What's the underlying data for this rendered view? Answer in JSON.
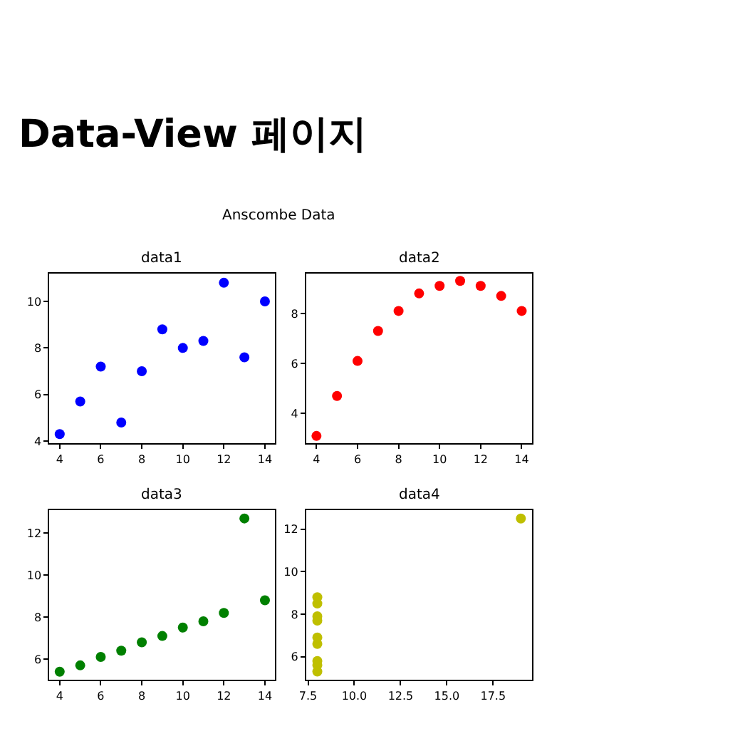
{
  "chart_data": [
    {
      "type": "other",
      "title": "Data-View 페이지",
      "subtitle": "Anscombe Data"
    },
    {
      "type": "scatter",
      "title": "data1",
      "x": [
        10,
        8,
        13,
        9,
        11,
        14,
        6,
        4,
        12,
        7,
        5
      ],
      "values": [
        8.0,
        7.0,
        7.6,
        8.8,
        8.3,
        10.0,
        7.2,
        4.3,
        10.8,
        4.8,
        5.7
      ],
      "color": "#0000ff",
      "marker": "circle",
      "xlim": [
        3.5,
        14.5
      ],
      "xticks": [
        4,
        6,
        8,
        10,
        12,
        14
      ],
      "ylim": [
        3.9,
        11.2
      ],
      "yticks": [
        4,
        6,
        8,
        10
      ]
    },
    {
      "type": "scatter",
      "title": "data2",
      "x": [
        10,
        8,
        13,
        9,
        11,
        14,
        6,
        4,
        12,
        7,
        5
      ],
      "values": [
        9.1,
        8.1,
        8.7,
        8.8,
        9.3,
        8.1,
        6.1,
        3.1,
        9.1,
        7.3,
        4.7
      ],
      "color": "#ff0000",
      "marker": "circle",
      "xlim": [
        3.5,
        14.5
      ],
      "xticks": [
        4,
        6,
        8,
        10,
        12,
        14
      ],
      "ylim": [
        2.8,
        9.6
      ],
      "yticks": [
        4,
        6,
        8
      ]
    },
    {
      "type": "scatter",
      "title": "data3",
      "x": [
        10,
        8,
        13,
        9,
        11,
        14,
        6,
        4,
        12,
        7,
        5
      ],
      "values": [
        7.5,
        6.8,
        12.7,
        7.1,
        7.8,
        8.8,
        6.1,
        5.4,
        8.2,
        6.4,
        5.7
      ],
      "color": "#008000",
      "marker": "circle",
      "xlim": [
        3.5,
        14.5
      ],
      "xticks": [
        4,
        6,
        8,
        10,
        12,
        14
      ],
      "ylim": [
        5.0,
        13.1
      ],
      "yticks": [
        6,
        8,
        10,
        12
      ]
    },
    {
      "type": "scatter",
      "title": "data4",
      "x": [
        8,
        8,
        8,
        8,
        8,
        8,
        19,
        8,
        8,
        8
      ],
      "values": [
        6.6,
        5.8,
        7.7,
        8.8,
        8.5,
        5.3,
        12.5,
        5.6,
        7.9,
        6.9
      ],
      "color": "#bfbf00",
      "marker": "circle",
      "xlim": [
        7.4,
        19.6
      ],
      "xticks": [
        {
          "value": 7.5,
          "label": "7.5"
        },
        {
          "value": 10,
          "label": "10.0"
        },
        {
          "value": 12.5,
          "label": "12.5"
        },
        {
          "value": 15,
          "label": "15.0"
        },
        {
          "value": 17.5,
          "label": "17.5"
        }
      ],
      "ylim": [
        4.9,
        12.9
      ],
      "yticks": [
        6,
        8,
        10,
        12
      ]
    }
  ]
}
